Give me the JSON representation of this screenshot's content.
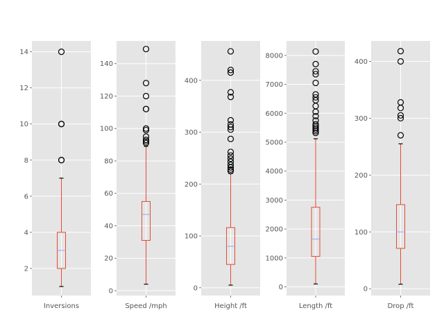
{
  "chart_data": [
    {
      "type": "box",
      "xlabel": "Inversions",
      "ylim": [
        0.5,
        14.6
      ],
      "yticks": [
        2,
        4,
        6,
        8,
        10,
        12,
        14
      ],
      "box": {
        "whisker_low": 1,
        "q1": 2,
        "median": 3,
        "q3": 4,
        "whisker_high": 7
      },
      "outliers": [
        8,
        8,
        10,
        10,
        14
      ],
      "colors": {
        "box": "#e24a33",
        "median": "#8fa3ff",
        "background": "#e5e5e5",
        "grid": "#ffffff",
        "outlier": "#000000"
      }
    },
    {
      "type": "box",
      "xlabel": "Speed /mph",
      "ylim": [
        -3,
        154
      ],
      "yticks": [
        0,
        20,
        40,
        60,
        80,
        100,
        120,
        140
      ],
      "box": {
        "whisker_low": 4,
        "q1": 31,
        "median": 47,
        "q3": 55,
        "whisker_high": 89
      },
      "outliers": [
        91,
        92,
        93,
        95,
        99,
        100,
        112,
        112,
        120,
        128,
        149
      ],
      "colors": {
        "box": "#e24a33",
        "median": "#8fa3ff",
        "background": "#e5e5e5",
        "grid": "#ffffff",
        "outlier": "#000000"
      }
    },
    {
      "type": "box",
      "xlabel": "Height /ft",
      "ylim": [
        -15,
        476
      ],
      "yticks": [
        0,
        100,
        200,
        300,
        400
      ],
      "box": {
        "whisker_low": 5,
        "q1": 45,
        "median": 80,
        "q3": 116,
        "whisker_high": 220
      },
      "outliers": [
        225,
        228,
        232,
        237,
        243,
        249,
        255,
        262,
        287,
        305,
        310,
        315,
        323,
        368,
        377,
        415,
        420,
        456
      ],
      "colors": {
        "box": "#e24a33",
        "median": "#8fa3ff",
        "background": "#e5e5e5",
        "grid": "#ffffff",
        "outlier": "#000000"
      }
    },
    {
      "type": "box",
      "xlabel": "Length /ft",
      "ylim": [
        -300,
        8500
      ],
      "yticks": [
        0,
        1000,
        2000,
        3000,
        4000,
        5000,
        6000,
        7000,
        8000
      ],
      "box": {
        "whisker_low": 100,
        "q1": 1050,
        "median": 1650,
        "q3": 2750,
        "whisker_high": 5120
      },
      "outliers": [
        5320,
        5380,
        5440,
        5500,
        5560,
        5620,
        5750,
        5900,
        6050,
        6250,
        6450,
        6550,
        6650,
        7050,
        7350,
        7450,
        7700,
        8133
      ],
      "colors": {
        "box": "#e24a33",
        "median": "#8fa3ff",
        "background": "#e5e5e5",
        "grid": "#ffffff",
        "outlier": "#000000"
      }
    },
    {
      "type": "box",
      "xlabel": "Drop /ft",
      "ylim": [
        -12,
        436
      ],
      "yticks": [
        0,
        100,
        200,
        300,
        400
      ],
      "box": {
        "whisker_low": 8,
        "q1": 71,
        "median": 100,
        "q3": 148,
        "whisker_high": 255
      },
      "outliers": [
        270,
        300,
        305,
        318,
        328,
        400,
        418
      ],
      "colors": {
        "box": "#e24a33",
        "median": "#8fa3ff",
        "background": "#e5e5e5",
        "grid": "#ffffff",
        "outlier": "#000000"
      }
    }
  ]
}
